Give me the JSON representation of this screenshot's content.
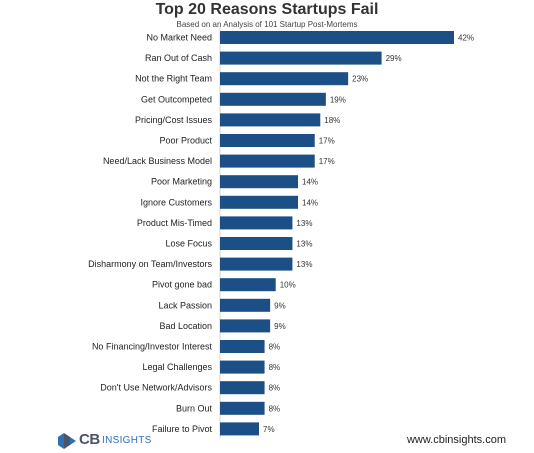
{
  "header": {
    "title": "Top 20 Reasons Startups Fail",
    "subtitle": "Based on an Analysis of 101 Startup Post-Mortems"
  },
  "chart_data": {
    "type": "bar",
    "orientation": "horizontal",
    "title": "Top 20 Reasons Startups Fail",
    "subtitle": "Based on an Analysis of 101 Startup Post-Mortems",
    "categories": [
      "No Market Need",
      "Ran Out of Cash",
      "Not the Right Team",
      "Get Outcompeted",
      "Pricing/Cost Issues",
      "Poor Product",
      "Need/Lack Business Model",
      "Poor Marketing",
      "Ignore Customers",
      "Product Mis-Timed",
      "Lose Focus",
      "Disharmony on Team/Investors",
      "Pivot gone bad",
      "Lack Passion",
      "Bad Location",
      "No Financing/Investor Interest",
      "Legal Challenges",
      "Don't Use Network/Advisors",
      "Burn Out",
      "Failure to Pivot"
    ],
    "values": [
      42,
      29,
      23,
      19,
      18,
      17,
      17,
      14,
      14,
      13,
      13,
      13,
      10,
      9,
      9,
      8,
      8,
      8,
      8,
      7
    ],
    "value_labels": [
      "42%",
      "29%",
      "23%",
      "19%",
      "18%",
      "17%",
      "17%",
      "14%",
      "14%",
      "13%",
      "13%",
      "13%",
      "10%",
      "9%",
      "9%",
      "8%",
      "8%",
      "8%",
      "8%",
      "7%"
    ],
    "unit": "%",
    "xlim": [
      0,
      42
    ],
    "grid": false,
    "legend": "none",
    "bar_color": "#1b4f86"
  },
  "footer": {
    "logo_cb": "CB",
    "logo_insights": "INSIGHTS",
    "website": "www.cbinsights.com"
  },
  "colors": {
    "bar": "#1b4f86",
    "logo_blue": "#2f6fb6",
    "logo_grey": "#4a5568"
  },
  "icons": {
    "logo": "cb-insights-logo-icon"
  }
}
